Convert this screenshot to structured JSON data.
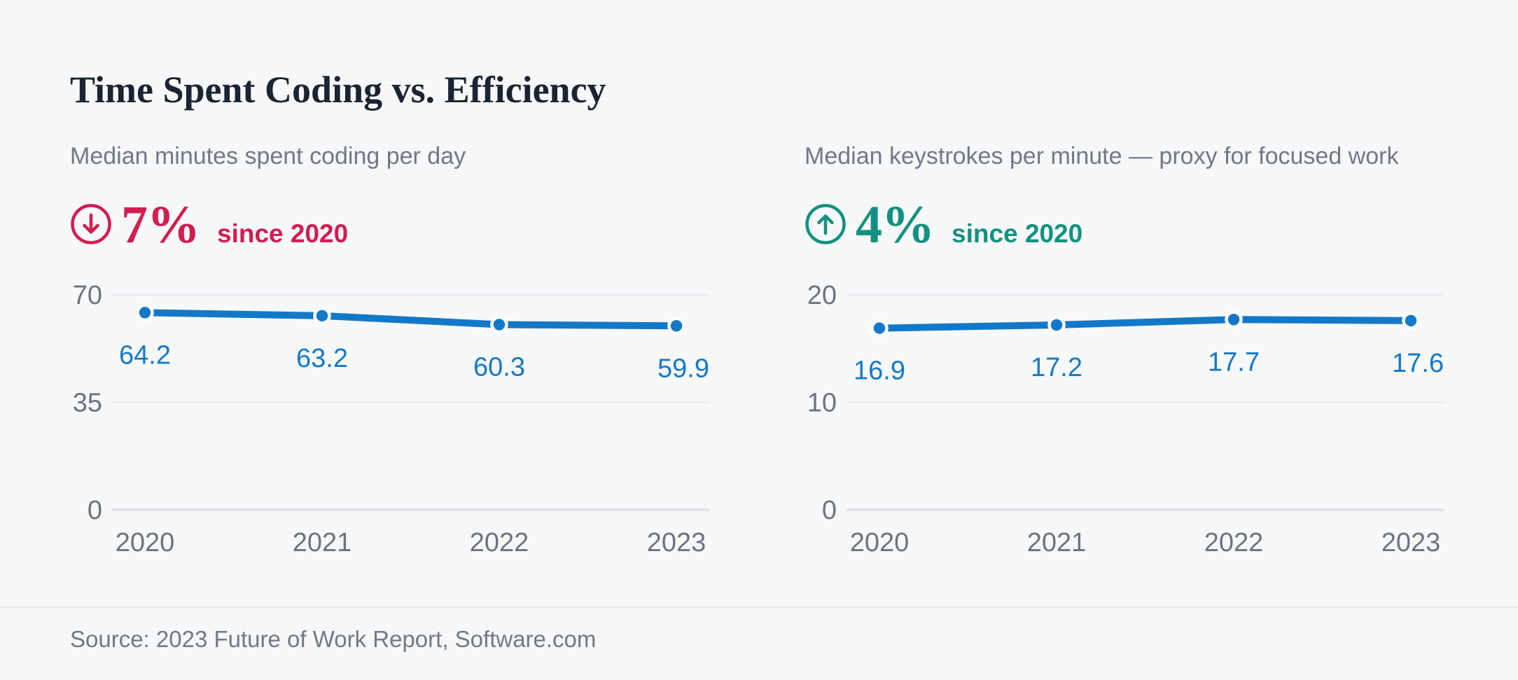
{
  "page": {
    "title": "Time Spent Coding vs. Efficiency",
    "source": "Source: 2023 Future of Work Report, Software.com",
    "background": "#f7f8fa"
  },
  "colors": {
    "title_text": "#1a2433",
    "muted_text": "#6f7987",
    "axis_text": "#6b7480",
    "accent_down": "#d11d4f",
    "accent_up": "#129180",
    "line_blue": "#1478c8",
    "gridline": "#eaecef",
    "zero_line": "#e2e4e9",
    "divider": "#e8e9ec"
  },
  "chart_data": [
    {
      "type": "line",
      "subtitle": "Median minutes spent coding per day",
      "stat": {
        "direction": "down",
        "icon": "circle-arrow-down-icon",
        "value": "7%",
        "caption": "since 2020",
        "color": "#d11d4f"
      },
      "categories": [
        "2020",
        "2021",
        "2022",
        "2023"
      ],
      "values": [
        64.2,
        63.2,
        60.3,
        59.9
      ],
      "value_labels": [
        "64.2",
        "63.2",
        "60.3",
        "59.9"
      ],
      "ylim": [
        0,
        70
      ],
      "yticks": [
        70,
        35,
        0
      ],
      "line_color": "#1478c8",
      "label_color": "#1478c8",
      "grid": "horizontal-only",
      "legend": "none"
    },
    {
      "type": "line",
      "subtitle": "Median keystrokes per minute — proxy for focused work",
      "stat": {
        "direction": "up",
        "icon": "circle-arrow-up-icon",
        "value": "4%",
        "caption": "since 2020",
        "color": "#129180"
      },
      "categories": [
        "2020",
        "2021",
        "2022",
        "2023"
      ],
      "values": [
        16.9,
        17.2,
        17.7,
        17.6
      ],
      "value_labels": [
        "16.9",
        "17.2",
        "17.7",
        "17.6"
      ],
      "ylim": [
        0,
        20
      ],
      "yticks": [
        20,
        10,
        0
      ],
      "line_color": "#1478c8",
      "label_color": "#1478c8",
      "grid": "horizontal-only",
      "legend": "none"
    }
  ]
}
